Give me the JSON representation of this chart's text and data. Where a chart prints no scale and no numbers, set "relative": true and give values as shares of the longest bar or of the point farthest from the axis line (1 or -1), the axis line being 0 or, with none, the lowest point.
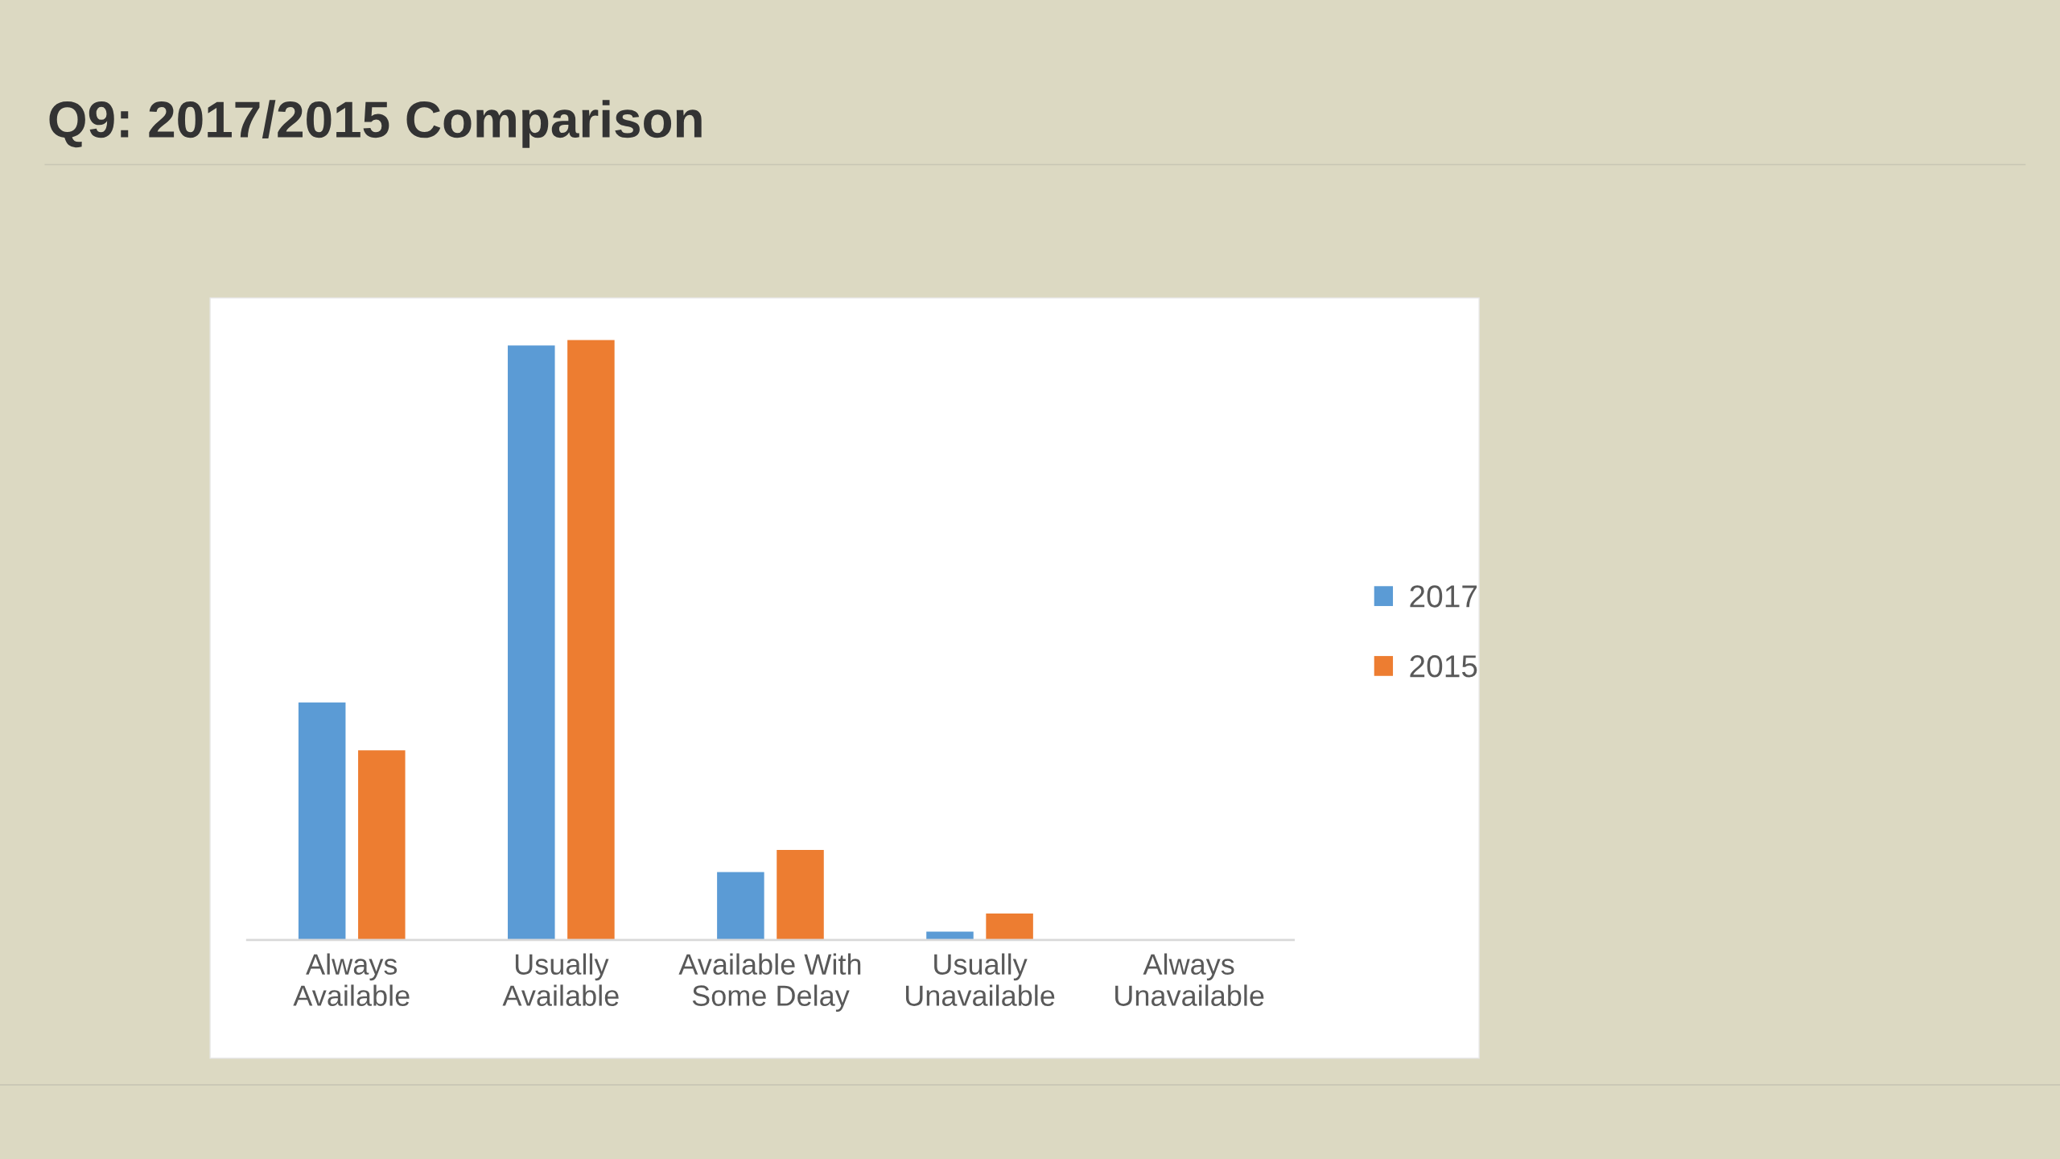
{
  "chart_data": {
    "type": "bar",
    "title": "Q9: 2017/2015 Comparison",
    "categories": [
      "Always\nAvailable",
      "Usually\nAvailable",
      "Available With\nSome Delay",
      "Usually\nUnavailable",
      "Always\nUnavailable"
    ],
    "relative": true,
    "series": [
      {
        "name": "2017",
        "color": "#5b9bd5",
        "values": [
          0.396,
          0.991,
          0.113,
          0.014,
          0
        ]
      },
      {
        "name": "2015",
        "color": "#ed7d31",
        "values": [
          0.316,
          1,
          0.15,
          0.044,
          0
        ]
      }
    ],
    "grid": false,
    "legend": "right"
  }
}
